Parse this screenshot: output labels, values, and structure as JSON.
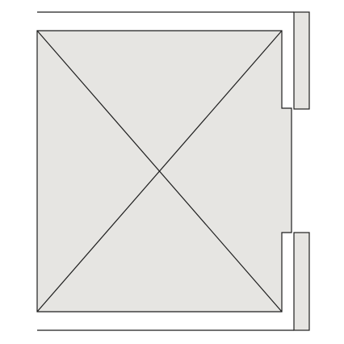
{
  "colors": {
    "background": "#ffffff",
    "fill": "#e6e5e2",
    "stroke": "#1e1e1e"
  },
  "elements": {
    "car": "elevator-car",
    "cross": "elevator-car-cross-mark",
    "door_jamb_top": "door-jamb-upper",
    "door_jamb_bottom": "door-jamb-lower",
    "door_opening": "door-opening"
  }
}
